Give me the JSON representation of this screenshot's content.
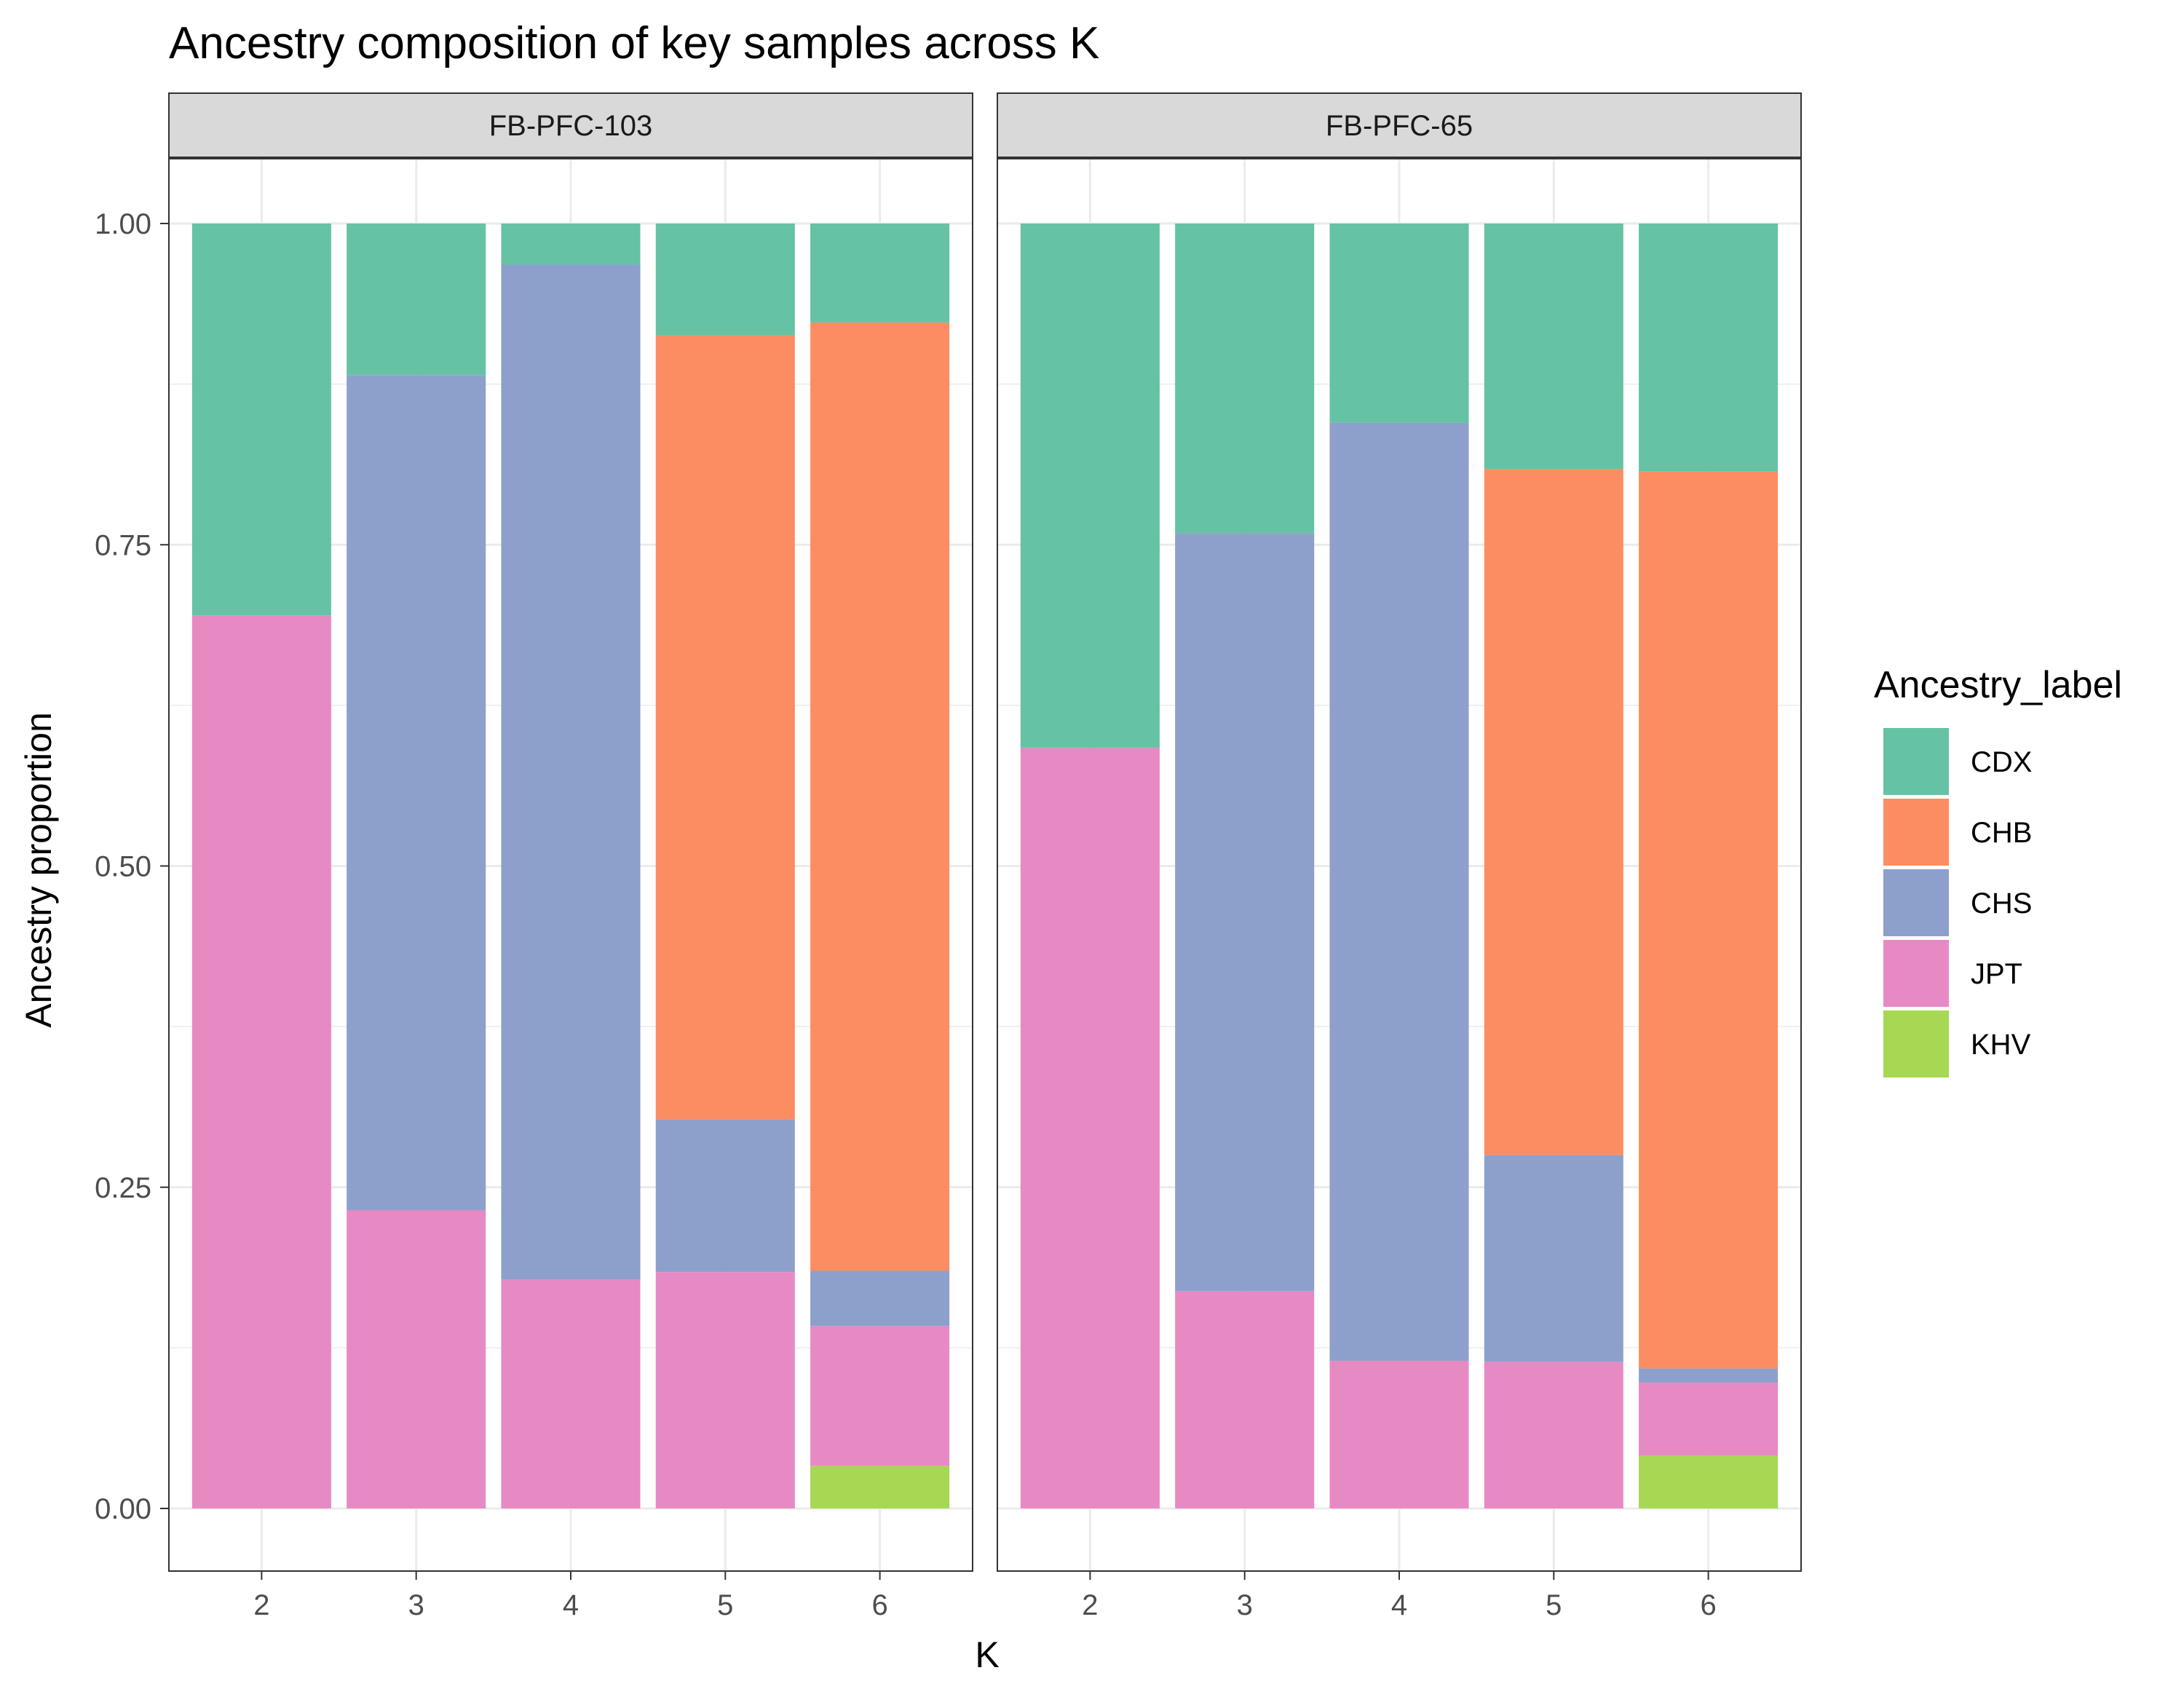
{
  "chart_data": {
    "type": "bar",
    "stacked": true,
    "title": "Ancestry composition of key samples across K",
    "xlabel": "K",
    "ylabel": "Ancestry proportion",
    "ylim": [
      0,
      1
    ],
    "y_ticks": [
      "0.00",
      "0.25",
      "0.50",
      "0.75",
      "1.00"
    ],
    "y_tick_values": [
      0,
      0.25,
      0.5,
      0.75,
      1.0
    ],
    "categories": [
      "2",
      "3",
      "4",
      "5",
      "6"
    ],
    "grid": true,
    "legend": {
      "title": "Ancestry_label",
      "placement": "right",
      "entries": [
        "CDX",
        "CHB",
        "CHS",
        "JPT",
        "KHV"
      ]
    },
    "colors": {
      "CDX": "#66c2a5",
      "CHB": "#fc8d62",
      "CHS": "#8da0cb",
      "JPT": "#e78ac3",
      "KHV": "#a6d854"
    },
    "stack_order_bottom_to_top": [
      "KHV",
      "JPT",
      "CHS",
      "CHB",
      "CDX"
    ],
    "panels": [
      {
        "name": "FB-PFC-103",
        "series": [
          {
            "name": "CDX",
            "values": [
              0.305,
              0.118,
              0.032,
              0.087,
              0.077
            ]
          },
          {
            "name": "CHB",
            "values": [
              0,
              0,
              0,
              0.61,
              0.738
            ]
          },
          {
            "name": "CHS",
            "values": [
              0,
              0.65,
              0.79,
              0.119,
              0.043
            ]
          },
          {
            "name": "JPT",
            "values": [
              0.695,
              0.232,
              0.178,
              0.184,
              0.109
            ]
          },
          {
            "name": "KHV",
            "values": [
              0,
              0,
              0,
              0,
              0.033
            ]
          }
        ]
      },
      {
        "name": "FB-PFC-65",
        "series": [
          {
            "name": "CDX",
            "values": [
              0.408,
              0.241,
              0.155,
              0.191,
              0.193
            ]
          },
          {
            "name": "CHB",
            "values": [
              0,
              0,
              0,
              0.534,
              0.698
            ]
          },
          {
            "name": "CHS",
            "values": [
              0,
              0.59,
              0.73,
              0.161,
              0.011
            ]
          },
          {
            "name": "JPT",
            "values": [
              0.592,
              0.169,
              0.115,
              0.114,
              0.057
            ]
          },
          {
            "name": "KHV",
            "values": [
              0,
              0,
              0,
              0,
              0.041
            ]
          }
        ]
      }
    ]
  }
}
